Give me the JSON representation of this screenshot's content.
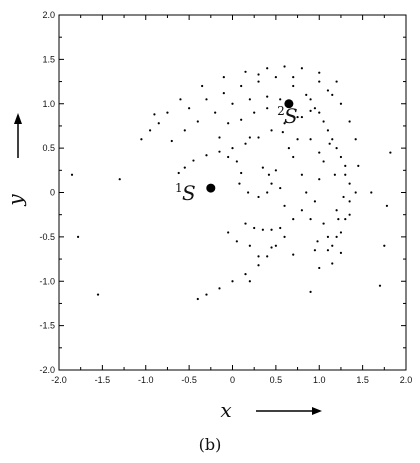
{
  "chart_data": {
    "type": "scatter",
    "title": "",
    "xlabel": "x",
    "ylabel": "y",
    "xlim": [
      -2.0,
      2.0
    ],
    "ylim": [
      -2.0,
      2.0
    ],
    "xticks": [
      "-2.0",
      "-1.5",
      "-1.0",
      "-0.5",
      "0",
      "0.5",
      "1.0",
      "1.5",
      "2.0"
    ],
    "yticks": [
      "2.0",
      "1.5",
      "1.0",
      "0.5",
      "0",
      "-0.5",
      "-1.0",
      "-1.5",
      "-2.0"
    ],
    "grid": false,
    "caption": "(b)",
    "fixed_points": [
      {
        "sup": "1",
        "name": "S",
        "x": -0.25,
        "y": 0.05
      },
      {
        "sup": "2",
        "name": "S",
        "x": 0.65,
        "y": 1.0
      }
    ],
    "series": [
      {
        "values": [
          [
            -0.62,
            0.22
          ],
          [
            -0.55,
            0.28
          ],
          [
            -0.45,
            0.36
          ],
          [
            -0.3,
            0.42
          ],
          [
            -0.15,
            0.46
          ],
          [
            0.0,
            0.5
          ],
          [
            0.15,
            0.55
          ],
          [
            0.3,
            0.62
          ],
          [
            0.45,
            0.7
          ],
          [
            0.6,
            0.78
          ],
          [
            0.75,
            0.85
          ],
          [
            0.9,
            0.92
          ],
          [
            -0.7,
            0.58
          ],
          [
            -0.55,
            0.7
          ],
          [
            -0.4,
            0.8
          ],
          [
            -0.2,
            0.9
          ],
          [
            0.0,
            1.0
          ],
          [
            0.2,
            1.05
          ],
          [
            0.4,
            1.08
          ],
          [
            0.55,
            1.05
          ],
          [
            -0.5,
            0.95
          ],
          [
            -0.3,
            1.05
          ],
          [
            -0.1,
            1.12
          ],
          [
            0.1,
            1.2
          ],
          [
            0.3,
            1.25
          ],
          [
            -0.35,
            1.2
          ],
          [
            -0.1,
            1.3
          ],
          [
            0.15,
            1.36
          ],
          [
            0.4,
            1.4
          ],
          [
            0.6,
            1.42
          ],
          [
            0.8,
            1.4
          ],
          [
            1.0,
            1.35
          ],
          [
            1.2,
            1.25
          ],
          [
            -0.05,
            0.78
          ],
          [
            0.1,
            0.82
          ],
          [
            0.2,
            0.62
          ],
          [
            -0.15,
            0.62
          ],
          [
            0.25,
            0.9
          ],
          [
            0.4,
            0.95
          ],
          [
            0.7,
            1.2
          ],
          [
            0.8,
            0.85
          ],
          [
            0.75,
            0.6
          ],
          [
            0.9,
            1.05
          ],
          [
            1.0,
            0.9
          ],
          [
            1.1,
            0.7
          ],
          [
            1.2,
            0.5
          ],
          [
            1.3,
            0.3
          ],
          [
            1.35,
            0.1
          ],
          [
            1.35,
            -0.1
          ],
          [
            1.3,
            -0.3
          ],
          [
            1.2,
            -0.5
          ],
          [
            1.1,
            -0.65
          ],
          [
            0.85,
            1.1
          ],
          [
            0.95,
            0.95
          ],
          [
            1.05,
            0.8
          ],
          [
            1.15,
            0.6
          ],
          [
            1.25,
            0.4
          ],
          [
            1.3,
            0.2
          ],
          [
            1.28,
            -0.05
          ],
          [
            1.22,
            -0.3
          ],
          [
            1.1,
            -0.5
          ],
          [
            0.95,
            -0.65
          ],
          [
            1.1,
            1.15
          ],
          [
            1.25,
            1.0
          ],
          [
            1.35,
            0.8
          ],
          [
            1.42,
            0.6
          ],
          [
            1.45,
            0.3
          ],
          [
            1.42,
            0.0
          ],
          [
            1.35,
            -0.25
          ],
          [
            1.25,
            -0.45
          ],
          [
            1.15,
            -0.6
          ],
          [
            0.98,
            -0.55
          ],
          [
            0.9,
            -0.3
          ],
          [
            0.95,
            -0.1
          ],
          [
            1.0,
            0.15
          ],
          [
            1.05,
            0.35
          ],
          [
            1.12,
            0.55
          ],
          [
            0.7,
            0.4
          ],
          [
            0.8,
            0.2
          ],
          [
            0.85,
            0.0
          ],
          [
            0.8,
            -0.2
          ],
          [
            0.7,
            -0.3
          ],
          [
            0.55,
            -0.4
          ],
          [
            0.45,
            -0.42
          ],
          [
            0.35,
            -0.42
          ],
          [
            0.25,
            -0.4
          ],
          [
            0.15,
            -0.35
          ],
          [
            0.6,
            -0.15
          ],
          [
            0.55,
            0.05
          ],
          [
            0.5,
            0.25
          ],
          [
            0.5,
            -0.6
          ],
          [
            0.4,
            -0.72
          ],
          [
            0.3,
            -0.82
          ],
          [
            0.15,
            -0.92
          ],
          [
            0.0,
            -1.0
          ],
          [
            -0.15,
            -1.08
          ],
          [
            -0.3,
            -1.15
          ],
          [
            -0.4,
            -1.2
          ],
          [
            0.6,
            -0.5
          ],
          [
            0.45,
            -0.62
          ],
          [
            0.3,
            -0.72
          ],
          [
            0.05,
            -0.55
          ],
          [
            -0.05,
            -0.45
          ],
          [
            0.2,
            -0.6
          ],
          [
            -0.05,
            0.4
          ],
          [
            0.05,
            0.35
          ],
          [
            0.1,
            0.22
          ],
          [
            0.08,
            0.1
          ],
          [
            0.18,
            0.0
          ],
          [
            0.3,
            -0.05
          ],
          [
            0.4,
            0.0
          ],
          [
            0.45,
            0.1
          ],
          [
            0.42,
            0.2
          ],
          [
            0.35,
            0.28
          ],
          [
            -0.85,
            0.78
          ],
          [
            -0.95,
            0.7
          ],
          [
            -1.05,
            0.6
          ],
          [
            -1.3,
            0.15
          ],
          [
            -1.85,
            0.2
          ],
          [
            -1.78,
            -0.5
          ],
          [
            -1.55,
            -1.15
          ],
          [
            1.6,
            0.0
          ],
          [
            1.78,
            -0.15
          ],
          [
            1.82,
            0.45
          ],
          [
            1.75,
            -0.6
          ],
          [
            1.7,
            -1.05
          ],
          [
            0.9,
            -1.12
          ],
          [
            0.2,
            -1.0
          ],
          [
            1.0,
            -0.85
          ],
          [
            1.15,
            -0.8
          ],
          [
            1.25,
            -0.68
          ],
          [
            0.7,
            -0.7
          ],
          [
            0.65,
            0.5
          ],
          [
            0.58,
            0.68
          ],
          [
            0.9,
            0.6
          ],
          [
            1.0,
            0.45
          ],
          [
            1.18,
            0.2
          ],
          [
            1.2,
            -0.2
          ],
          [
            1.05,
            -0.35
          ],
          [
            1.0,
            1.25
          ],
          [
            1.15,
            1.1
          ],
          [
            0.7,
            1.3
          ],
          [
            0.5,
            1.3
          ],
          [
            0.3,
            1.33
          ],
          [
            -0.6,
            1.05
          ],
          [
            -0.75,
            0.9
          ],
          [
            -0.9,
            0.88
          ]
        ]
      }
    ]
  }
}
